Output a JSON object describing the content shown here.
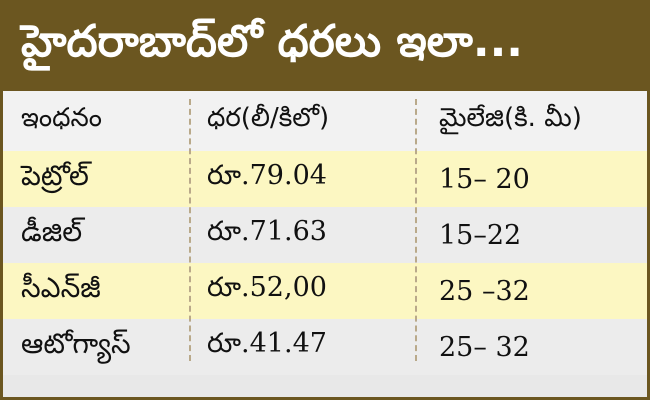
{
  "title": "హైదరాబాద్‌లో  ధరలు ఇలా...",
  "columns": [
    "ఇంధనం",
    "ధర(లీ/కిలో)",
    "మైలేజి(కి. మీ)"
  ],
  "rows": [
    {
      "fuel": "పెట్రోల్",
      "price": "రూ.79.04",
      "mileage": "15– 20"
    },
    {
      "fuel": "డీజిల్",
      "price": "రూ.71.63",
      "mileage": "15–22"
    },
    {
      "fuel": "సీఎన్‌జీ",
      "price": "రూ.52,00",
      "mileage": "25 –32"
    },
    {
      "fuel": "ఆటోగ్యాస్",
      "price": "రూ.41.47",
      "mileage": "25– 32"
    }
  ],
  "colors": {
    "title_bg": "#6b5620",
    "row_yellow": "#fcf7c2",
    "row_gray": "#ececec"
  }
}
